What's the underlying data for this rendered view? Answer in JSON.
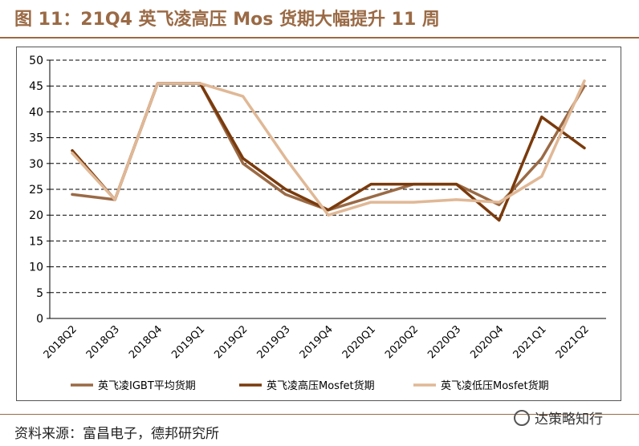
{
  "figure": {
    "title": "图 11：21Q4 英飞凌高压 Mos 货期大幅提升 11 周",
    "source": "资料来源：富昌电子，德邦研究所",
    "watermark": "达策略知行"
  },
  "chart_data": {
    "type": "line",
    "categories": [
      "2018Q2",
      "2018Q3",
      "2018Q4",
      "2019Q1",
      "2019Q2",
      "2019Q3",
      "2019Q4",
      "2020Q1",
      "2020Q2",
      "2020Q3",
      "2020Q4",
      "2021Q1",
      "2021Q2"
    ],
    "ylim": [
      0,
      50
    ],
    "yticks": [
      0,
      5,
      10,
      15,
      20,
      25,
      30,
      35,
      40,
      45,
      50
    ],
    "grid": true,
    "legend_position": "bottom",
    "series": [
      {
        "name": "英飞凌IGBT平均货期",
        "color": "#9a6a45",
        "values": [
          24,
          23,
          45.5,
          45.5,
          30,
          24,
          21,
          23.5,
          26,
          26,
          22,
          31,
          45
        ]
      },
      {
        "name": "英飞凌高压Mosfet货期",
        "color": "#7a3a0c",
        "values": [
          32.5,
          23,
          45.5,
          45.5,
          31,
          25,
          21,
          26,
          26,
          26,
          19,
          39,
          33
        ]
      },
      {
        "name": "英飞凌低压Mosfet货期",
        "color": "#e0b896",
        "values": [
          32,
          23,
          45.5,
          45.5,
          43,
          31,
          20,
          22.5,
          22.5,
          23,
          22.5,
          27.5,
          46
        ]
      }
    ]
  }
}
